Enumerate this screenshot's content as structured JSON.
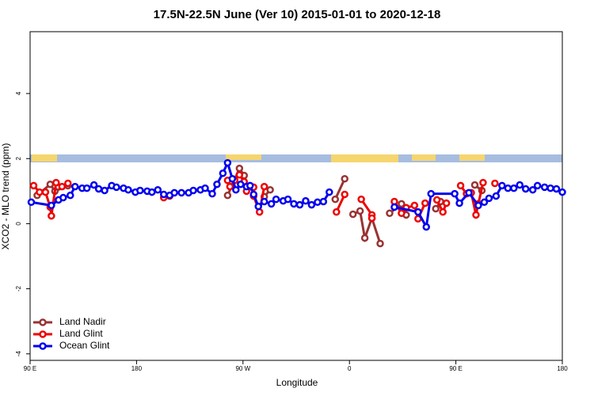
{
  "chart_data": {
    "type": "line",
    "title": "17.5N-22.5N June (Ver 10)   2015-01-01 to 2020-12-18",
    "x_label": "Longitude",
    "y_label": "XCO2 - MLO trend (ppm)",
    "xlim": [
      90,
      540
    ],
    "xticks": [
      {
        "value": 90,
        "label": "90 E"
      },
      180,
      {
        "value": 270,
        "label": "90 W"
      },
      {
        "value": 360,
        "label": "0"
      },
      {
        "value": 450,
        "label": "90 E"
      },
      {
        "value": 540,
        "label": "180"
      }
    ],
    "ylim": [
      -4.2,
      5.9
    ],
    "yticks": [
      -4,
      -2,
      0,
      2,
      4
    ],
    "legend": "bottom-left",
    "series": [
      {
        "name": "Land Nadir",
        "color": "#993333",
        "x": [
          96,
          107,
          111,
          122,
          null,
          257,
          267,
          271,
          null,
          288,
          293,
          null,
          348,
          356,
          null,
          363,
          369,
          373,
          379,
          386,
          null,
          394,
          404,
          408,
          null,
          433,
          437,
          null,
          466,
          472
        ],
        "values": [
          0.87,
          1.21,
          1.0,
          1.17,
          null,
          0.87,
          1.7,
          1.48,
          null,
          0.83,
          1.04,
          null,
          0.75,
          1.38,
          null,
          0.29,
          0.39,
          -0.44,
          0.17,
          -0.61,
          null,
          0.32,
          0.61,
          0.27,
          null,
          0.46,
          0.68,
          null,
          1.19,
          1.02
        ]
      },
      {
        "name": "Land Glint",
        "color": "#ee0000",
        "x": [
          93,
          98,
          103,
          107,
          108,
          112,
          117,
          122,
          null,
          203,
          208,
          null,
          257,
          259,
          263,
          267,
          271,
          273,
          279,
          279,
          284,
          288,
          null,
          349,
          356,
          null,
          370,
          379,
          379,
          null,
          398,
          404,
          408,
          415,
          418,
          424,
          null,
          434,
          439,
          442,
          null,
          454,
          459,
          463,
          467,
          469,
          473,
          null,
          483
        ],
        "values": [
          1.17,
          0.97,
          0.97,
          0.51,
          0.24,
          1.26,
          1.14,
          1.24,
          null,
          0.8,
          0.85,
          null,
          1.33,
          1.14,
          1.33,
          1.5,
          1.29,
          1.0,
          1.12,
          0.85,
          0.36,
          1.14,
          null,
          0.36,
          0.9,
          null,
          0.75,
          0.27,
          0.17,
          null,
          0.68,
          0.32,
          0.49,
          0.56,
          0.15,
          0.63,
          null,
          0.73,
          0.36,
          0.63,
          null,
          1.17,
          0.92,
          0.95,
          0.27,
          0.61,
          1.26,
          null,
          1.24
        ]
      },
      {
        "name": "Ocean Glint",
        "color": "#0000ee",
        "x": [
          91,
          108,
          114,
          118,
          124,
          128,
          134,
          138,
          144,
          148,
          153,
          159,
          163,
          169,
          173,
          179,
          183,
          189,
          193,
          198,
          203,
          208,
          212,
          218,
          224,
          228,
          234,
          238,
          244,
          248,
          253,
          257,
          261,
          264,
          268,
          273,
          276,
          279,
          283,
          288,
          294,
          298,
          304,
          308,
          313,
          318,
          323,
          328,
          333,
          338,
          343,
          null,
          398,
          418,
          425,
          429,
          449,
          453,
          461,
          469,
          474,
          478,
          484,
          489,
          494,
          499,
          504,
          509,
          515,
          519,
          525,
          530,
          535,
          540
        ],
        "values": [
          0.66,
          0.56,
          0.73,
          0.8,
          0.87,
          1.14,
          1.09,
          1.09,
          1.19,
          1.07,
          1.02,
          1.17,
          1.12,
          1.09,
          1.04,
          0.97,
          1.02,
          1.0,
          0.97,
          1.04,
          0.9,
          0.87,
          0.95,
          0.95,
          0.95,
          1.02,
          1.04,
          1.09,
          0.92,
          1.21,
          1.55,
          1.87,
          1.38,
          1.04,
          1.21,
          1.14,
          1.17,
          0.9,
          0.53,
          0.68,
          0.61,
          0.75,
          0.7,
          0.75,
          0.61,
          0.58,
          0.7,
          0.58,
          0.66,
          0.68,
          0.97,
          null,
          0.51,
          0.36,
          -0.1,
          0.92,
          0.92,
          0.63,
          0.95,
          0.56,
          0.66,
          0.78,
          0.85,
          1.17,
          1.09,
          1.09,
          1.19,
          1.07,
          1.04,
          1.17,
          1.12,
          1.09,
          1.07,
          0.97
        ]
      }
    ]
  }
}
